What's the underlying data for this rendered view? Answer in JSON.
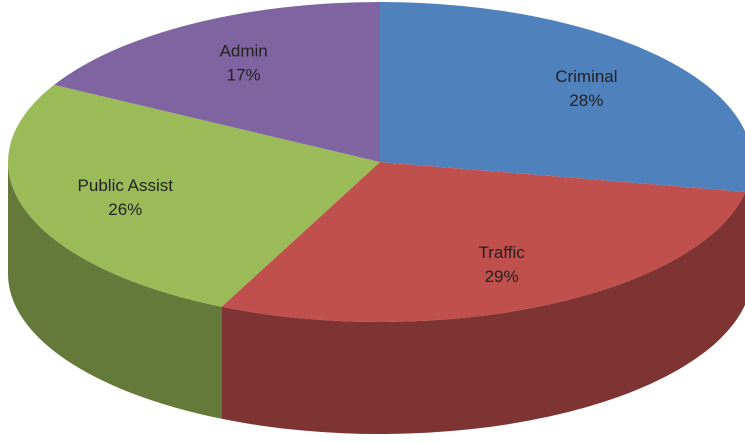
{
  "chart_data": {
    "type": "pie",
    "categories": [
      "Criminal",
      "Traffic",
      "Public Assist",
      "Admin"
    ],
    "values": [
      28,
      29,
      26,
      17
    ],
    "value_labels": [
      "28%",
      "29%",
      "26%",
      "17%"
    ],
    "colors": [
      "#4f81bd",
      "#c0504d",
      "#9bbb59",
      "#8064a2"
    ],
    "three_d": true
  }
}
